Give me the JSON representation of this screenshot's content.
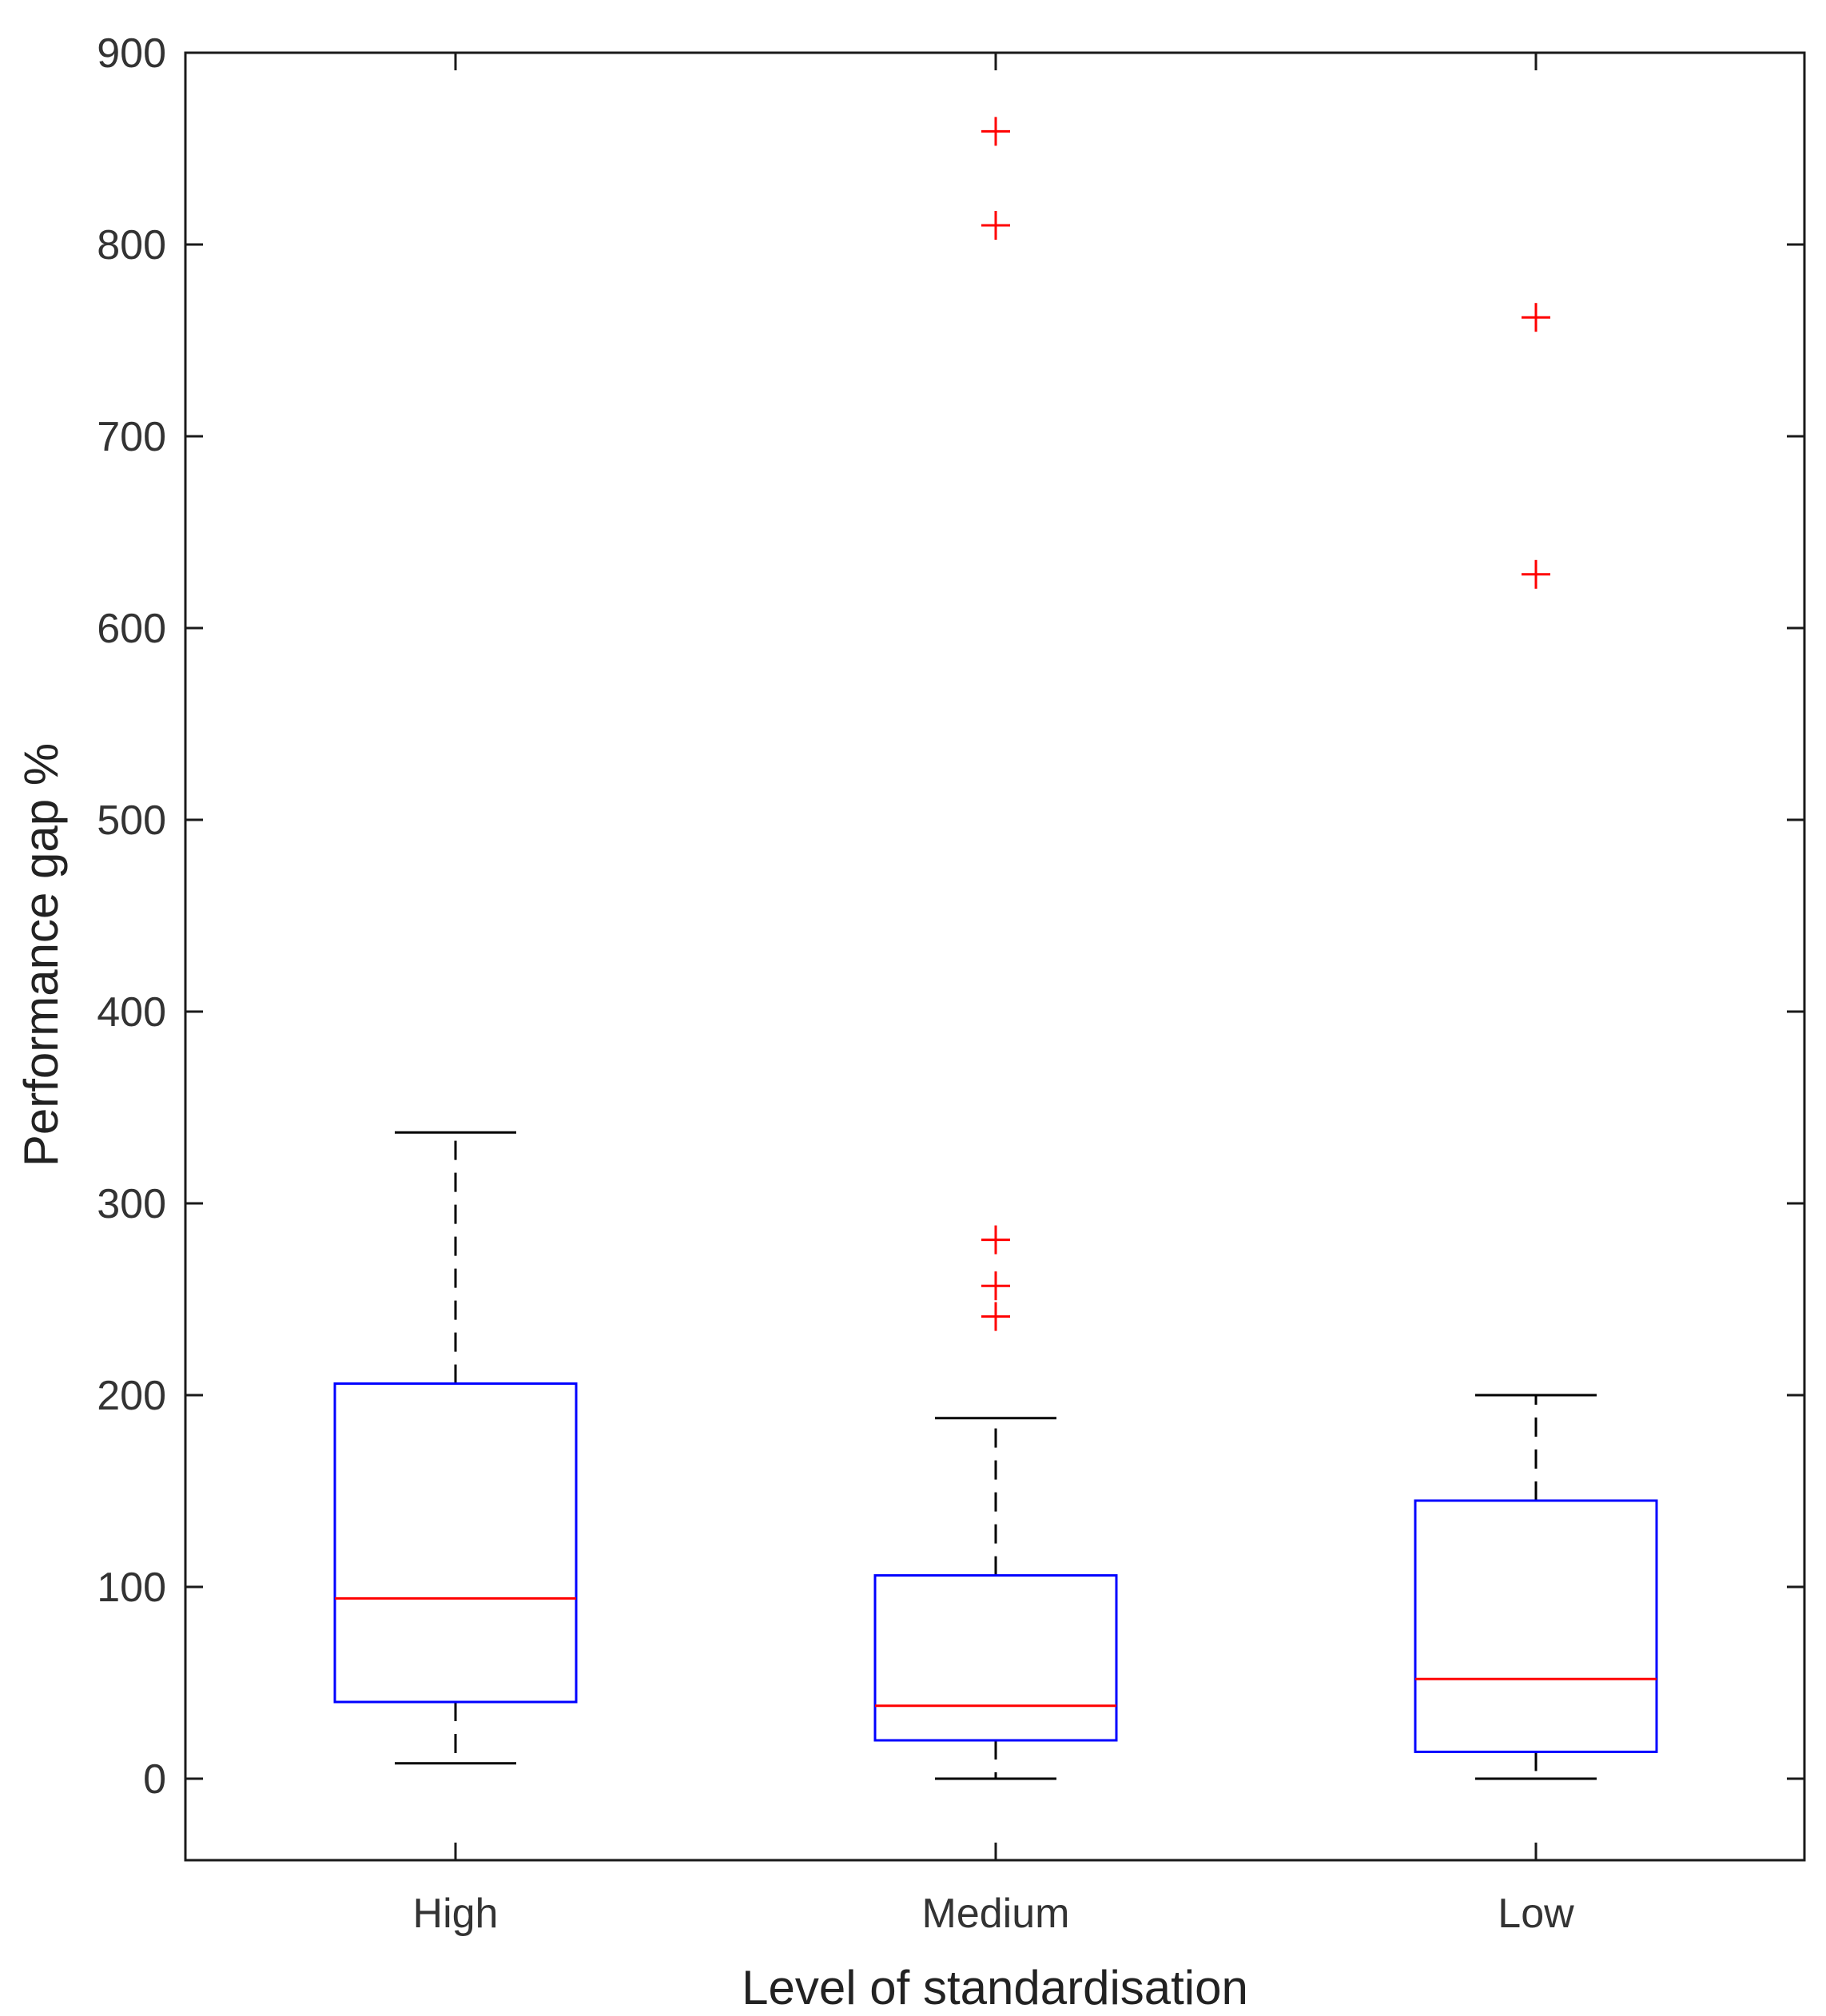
{
  "chart_data": {
    "type": "boxplot",
    "title": "",
    "xlabel": "Level of standardisation",
    "ylabel": "Performance gap %",
    "ylim": [
      -42,
      902
    ],
    "yticks": [
      0,
      100,
      200,
      300,
      400,
      500,
      600,
      700,
      800,
      900
    ],
    "ytick_labels": [
      "0",
      "100",
      "200",
      "300",
      "400",
      "500",
      "600",
      "700",
      "800",
      "900"
    ],
    "categories": [
      "High",
      "Medium",
      "Low"
    ],
    "boxes": [
      {
        "name": "High",
        "whisker_low": 8,
        "q1": 40,
        "median": 94,
        "q3": 206,
        "whisker_high": 337,
        "outliers": []
      },
      {
        "name": "Medium",
        "whisker_low": 0,
        "q1": 20,
        "median": 38,
        "q3": 106,
        "whisker_high": 188,
        "outliers": [
          241,
          257,
          281,
          810,
          859
        ]
      },
      {
        "name": "Low",
        "whisker_low": 0,
        "q1": 14,
        "median": 52,
        "q3": 145,
        "whisker_high": 200,
        "outliers": [
          628,
          762
        ]
      }
    ],
    "colors": {
      "box": "#0000ff",
      "median": "#ff0000",
      "whisker": "#000000",
      "outlier": "#ff0000",
      "axis": "#1a1a1a"
    }
  }
}
